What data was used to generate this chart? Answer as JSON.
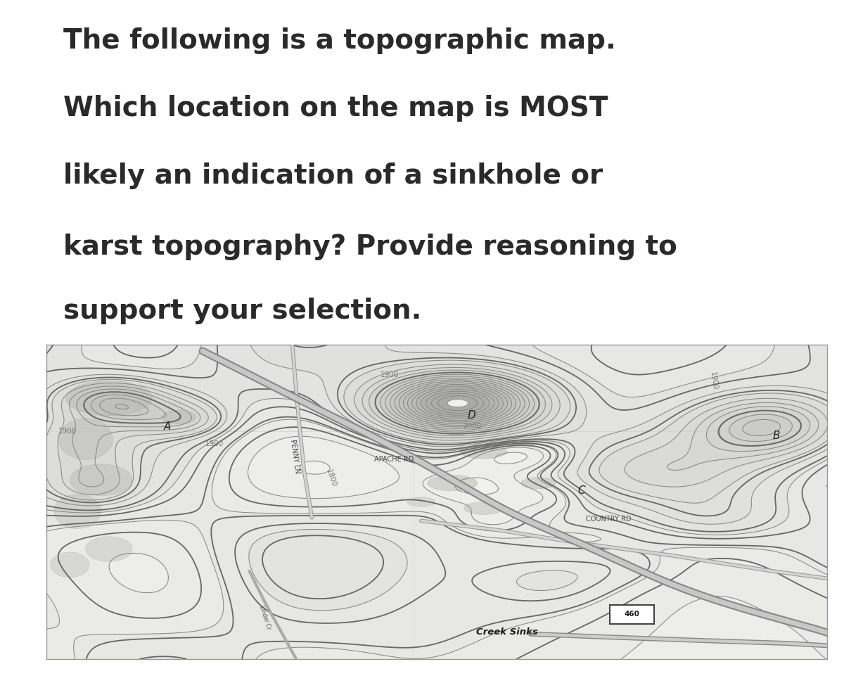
{
  "bg_color": "#ffffff",
  "text_color": "#2a2a2a",
  "map_bg": "#f0f0ec",
  "title_lines": [
    "The following is a topographic map.",
    "Which location on the map is MOST",
    "likely an indication of a sinkhole or",
    "karst topography? Provide reasoning to",
    "support your selection."
  ],
  "title_fontsize": 28,
  "contour_color": "#888888",
  "contour_lw": 0.75,
  "label_fontsize": 7.5,
  "marker_fontsize": 11
}
